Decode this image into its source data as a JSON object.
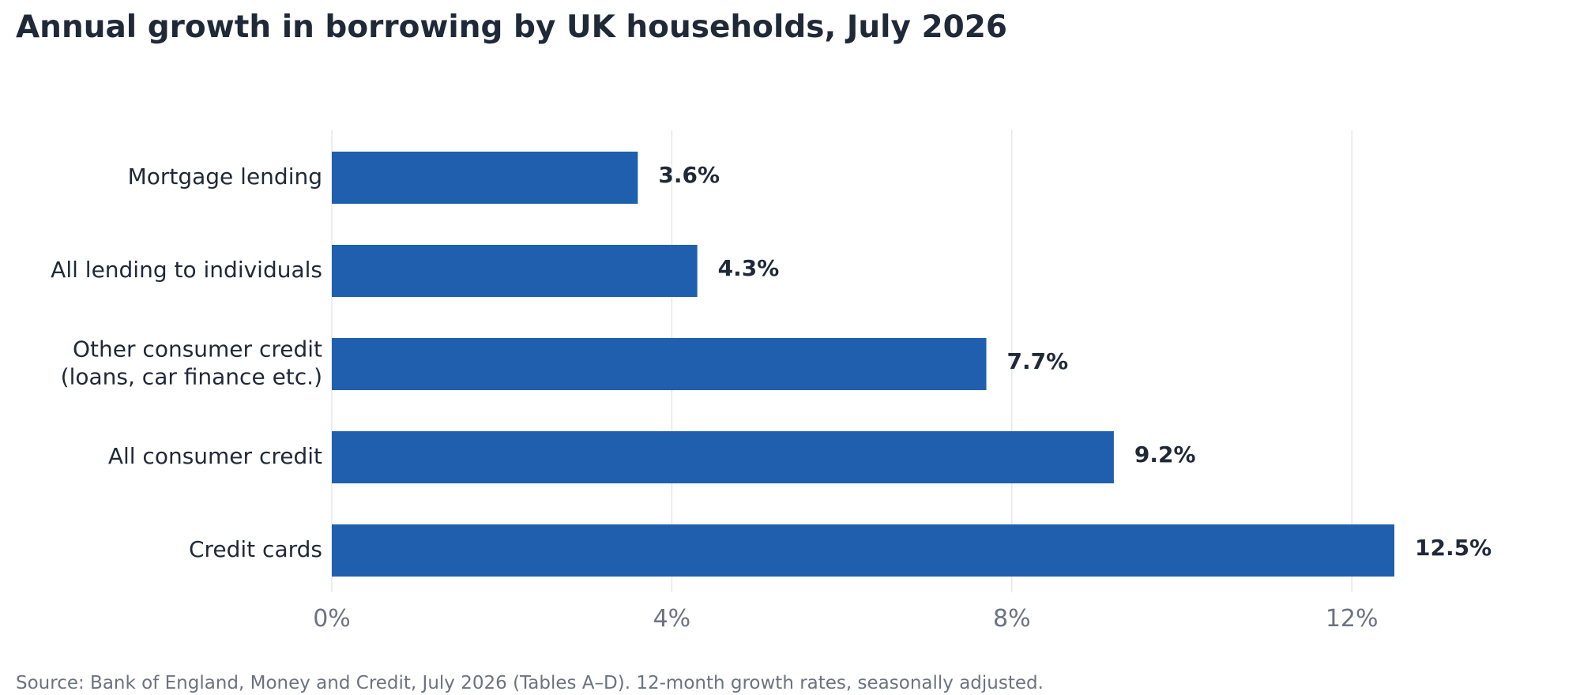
{
  "chart_data": {
    "type": "bar",
    "orientation": "horizontal",
    "title": "Annual growth in borrowing by UK households, July 2026",
    "xlabel": "",
    "ylabel": "",
    "categories": [
      "Mortgage lending",
      "All lending to individuals",
      "Other consumer credit\n(loans, car finance etc.)",
      "All consumer credit",
      "Credit cards"
    ],
    "values": [
      3.6,
      4.3,
      7.7,
      9.2,
      12.5
    ],
    "value_labels": [
      "3.6%",
      "4.3%",
      "7.7%",
      "9.2%",
      "12.5%"
    ],
    "xlim": [
      0,
      14
    ],
    "xticks": [
      0,
      4,
      8,
      12
    ],
    "xtick_labels": [
      "0%",
      "4%",
      "8%",
      "12%"
    ],
    "grid": "vertical",
    "legend": "none",
    "bar_color": "#1f5fae",
    "source": "Source: Bank of England, Money and Credit, July 2026 (Tables A–D). 12-month growth rates, seasonally adjusted."
  }
}
